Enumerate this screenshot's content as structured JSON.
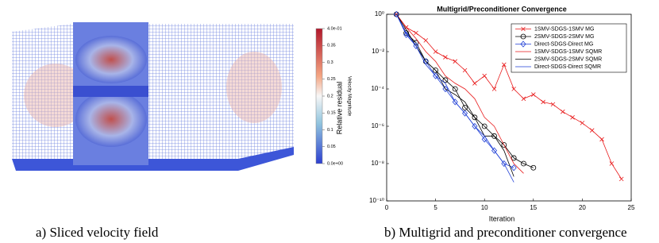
{
  "panel_a": {
    "caption": "a)  Sliced velocity field",
    "colorbar": {
      "label": "Velocity Magnitude",
      "lim": [
        0,
        0.4
      ],
      "ticks": [
        {
          "value": 0.4,
          "label": "4.0e-01"
        },
        0.35,
        0.3,
        0.25,
        0.2,
        0.15,
        0.1,
        0.05,
        {
          "value": 0,
          "label": "0.0e+00"
        }
      ]
    }
  },
  "chart_data": {
    "type": "line",
    "title": "Multigrid/Preconditioner Convergence",
    "xlabel": "Iteration",
    "ylabel": "Relative residual",
    "x": [
      1,
      2,
      3,
      4,
      5,
      6,
      7,
      8,
      9,
      10,
      11,
      12,
      13,
      14,
      15,
      16,
      17,
      18,
      19,
      20,
      21,
      22,
      23,
      24
    ],
    "xlim": [
      0,
      25
    ],
    "xticks": [
      0,
      5,
      10,
      15,
      20,
      25
    ],
    "ylim": [
      1e-10,
      1
    ],
    "log_y": true,
    "yticks": [
      {
        "value": 1e-10,
        "label": "10⁻¹⁰"
      },
      {
        "value": 1e-08,
        "label": "10⁻⁸"
      },
      {
        "value": 1e-06,
        "label": "10⁻⁶"
      },
      {
        "value": 0.0001,
        "label": "10⁻⁴"
      },
      {
        "value": 0.01,
        "label": "10⁻²"
      },
      {
        "value": 1,
        "label": "10⁰"
      }
    ],
    "legend": "upper right",
    "series": [
      {
        "name": "1SMV-SDGS-1SMV MG",
        "color": "#e8191a",
        "marker": "x",
        "values": [
          1,
          0.2,
          0.1,
          0.04,
          0.01,
          0.005,
          0.003,
          0.001,
          0.0002,
          0.0005,
          0.0001,
          0.002,
          0.0001,
          3e-05,
          5e-05,
          2e-05,
          1.5e-05,
          6e-06,
          3e-06,
          1.5e-06,
          6e-07,
          2e-07,
          1e-08,
          1.5e-09
        ]
      },
      {
        "name": "2SMV-SDGS-2SMV MG",
        "color": "#000000",
        "marker": "o",
        "values": [
          1,
          0.1,
          0.03,
          0.003,
          0.001,
          0.0003,
          0.0001,
          1e-05,
          3e-06,
          1e-06,
          3e-07,
          1e-07,
          2e-08,
          1e-08,
          6e-09,
          null,
          null,
          null,
          null,
          null,
          null,
          null,
          null,
          null
        ]
      },
      {
        "name": "Direct-SDGS-Direct MG",
        "color": "#1f3fd6",
        "marker": "diamond",
        "values": [
          1,
          0.08,
          0.02,
          0.003,
          0.0005,
          0.0001,
          2e-05,
          5e-06,
          1e-06,
          2e-07,
          5e-08,
          1e-08,
          6e-09,
          null,
          null,
          null,
          null,
          null,
          null,
          null,
          null,
          null,
          null,
          null
        ]
      },
      {
        "name": "1SMV-SDGS-1SMV SQMR",
        "color": "#e8191a",
        "marker": "none",
        "values": [
          1,
          0.2,
          0.05,
          0.01,
          0.003,
          0.0005,
          0.0002,
          0.0001,
          3e-05,
          3e-06,
          1e-06,
          1e-07,
          1e-08,
          3e-09,
          null,
          null,
          null,
          null,
          null,
          null,
          null,
          null,
          null,
          null
        ]
      },
      {
        "name": "2SMV-SDGS-2SMV SQMR",
        "color": "#000000",
        "marker": "none",
        "values": [
          1,
          0.15,
          0.02,
          0.003,
          0.001,
          0.0001,
          5e-05,
          2e-05,
          3e-06,
          3e-07,
          3e-07,
          5e-08,
          2e-09,
          null,
          null,
          null,
          null,
          null,
          null,
          null,
          null,
          null,
          null,
          null
        ]
      },
      {
        "name": "Direct-SDGS-Direct SQMR",
        "color": "#1f3fd6",
        "marker": "none",
        "values": [
          1,
          0.1,
          0.02,
          0.002,
          0.0005,
          0.0002,
          2e-05,
          5e-06,
          1e-06,
          3e-07,
          5e-08,
          1e-08,
          1e-09,
          null,
          null,
          null,
          null,
          null,
          null,
          null,
          null,
          null,
          null,
          null
        ]
      }
    ]
  },
  "caption_b": "b) Multigrid and preconditioner convergence"
}
